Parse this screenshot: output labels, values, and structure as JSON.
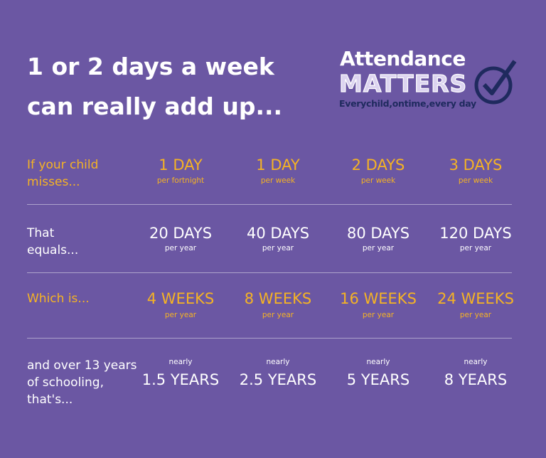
{
  "headline": [
    "1 or 2 days a week",
    "can really add up..."
  ],
  "logo": {
    "line1": "Attendance",
    "line2": "MATTERS",
    "tagline": "Everychild,ontime,every day",
    "icon": "checkmark-circle-icon"
  },
  "colors": {
    "background": "#6b57a3",
    "gold": "#f5b324",
    "navy": "#1f2a5e"
  },
  "rows": [
    {
      "label": [
        "If your child",
        "misses..."
      ],
      "cells": [
        {
          "main": "1 DAY",
          "sub": "per fortnight"
        },
        {
          "main": "1 DAY",
          "sub": "per week"
        },
        {
          "main": "2 DAYS",
          "sub": "per week"
        },
        {
          "main": "3 DAYS",
          "sub": "per week"
        }
      ]
    },
    {
      "label": [
        "That",
        "equals..."
      ],
      "cells": [
        {
          "main": "20 DAYS",
          "sub": "per year"
        },
        {
          "main": "40 DAYS",
          "sub": "per year"
        },
        {
          "main": "80 DAYS",
          "sub": "per year"
        },
        {
          "main": "120 DAYS",
          "sub": "per year"
        }
      ]
    },
    {
      "label": [
        "Which is..."
      ],
      "cells": [
        {
          "main": "4 WEEKS",
          "sub": "per year"
        },
        {
          "main": "8 WEEKS",
          "sub": "per year"
        },
        {
          "main": "16 WEEKS",
          "sub": "per year"
        },
        {
          "main": "24 WEEKS",
          "sub": "per year"
        }
      ]
    },
    {
      "label": [
        "and over 13 years",
        "of schooling,",
        "that's..."
      ],
      "cells": [
        {
          "pre": "nearly",
          "main": "1.5 YEARS"
        },
        {
          "pre": "nearly",
          "main": "2.5 YEARS"
        },
        {
          "pre": "nearly",
          "main": "5 YEARS"
        },
        {
          "pre": "nearly",
          "main": "8 YEARS"
        }
      ]
    }
  ]
}
